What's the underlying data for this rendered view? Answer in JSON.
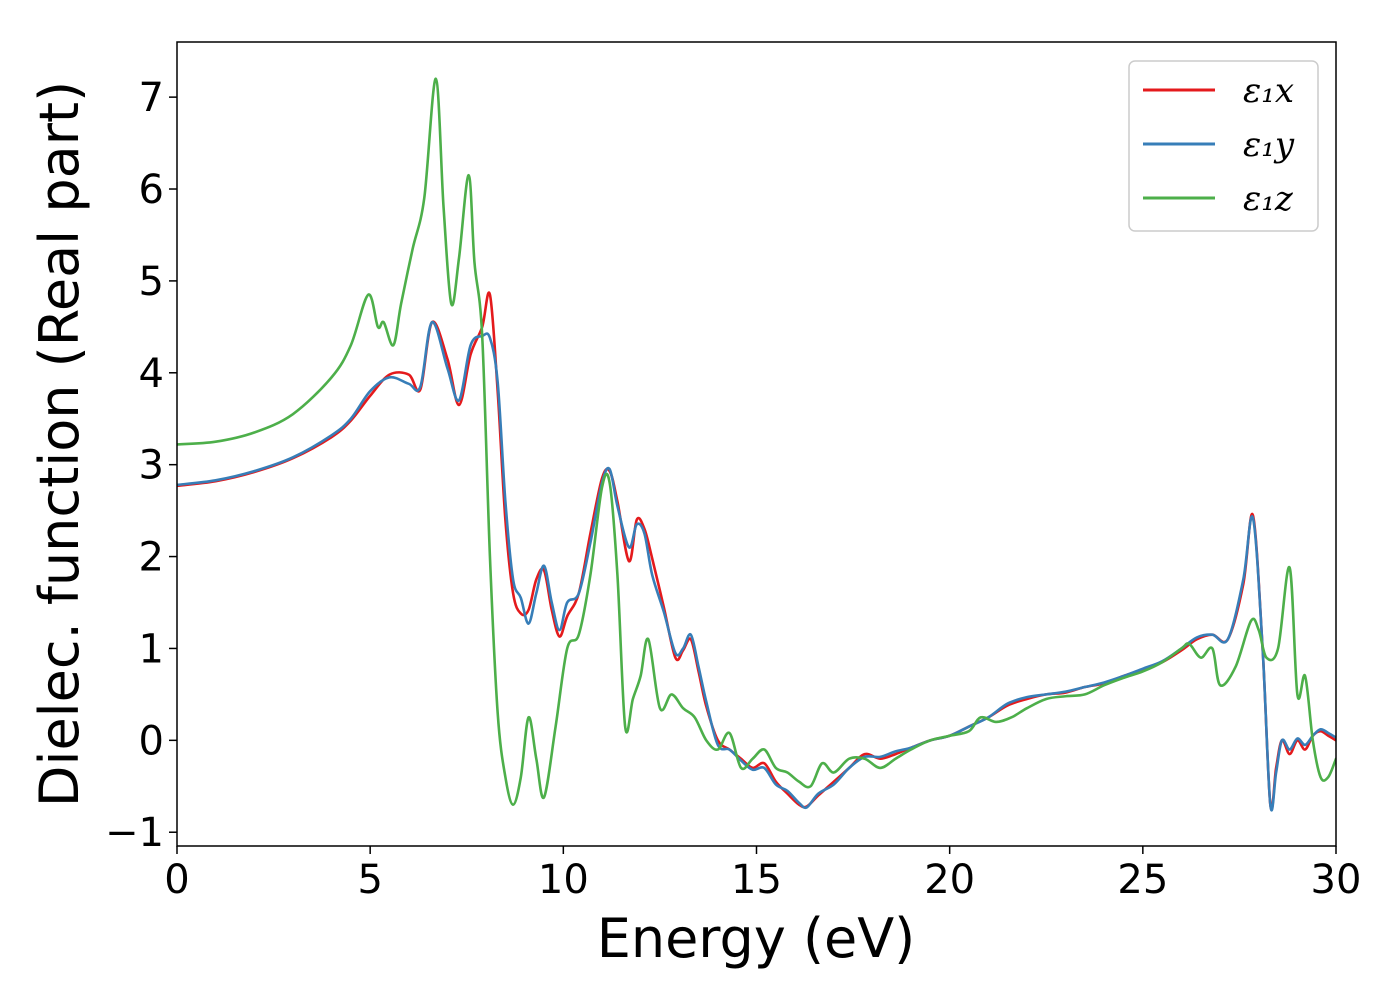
{
  "chart_data": {
    "type": "line",
    "xlabel": "Energy (eV)",
    "ylabel": "Dielec. function (Real part)",
    "xlim": [
      0,
      30
    ],
    "ylim": [
      -1.15,
      7.6
    ],
    "xticks": [
      0,
      5,
      10,
      15,
      20,
      25,
      30
    ],
    "xtick_labels": [
      "0",
      "5",
      "10",
      "15",
      "20",
      "25",
      "30"
    ],
    "yticks": [
      -1,
      0,
      1,
      2,
      3,
      4,
      5,
      6,
      7
    ],
    "ytick_labels": [
      "−1",
      "0",
      "1",
      "2",
      "3",
      "4",
      "5",
      "6",
      "7"
    ],
    "grid": false,
    "legend_position": "top-right",
    "series": [
      {
        "name": "ε₁x",
        "color": "#e41a1c",
        "x": [
          0,
          1,
          2,
          3,
          4,
          4.5,
          5,
          5.5,
          6,
          6.3,
          6.6,
          7,
          7.3,
          7.6,
          7.9,
          8.1,
          8.3,
          8.5,
          8.7,
          8.9,
          9.1,
          9.3,
          9.5,
          9.7,
          9.9,
          10.1,
          10.4,
          10.7,
          11,
          11.2,
          11.4,
          11.7,
          11.9,
          12.1,
          12.3,
          12.6,
          12.9,
          13.1,
          13.3,
          13.5,
          13.7,
          14,
          14.3,
          14.6,
          14.9,
          15.2,
          15.5,
          15.8,
          16.1,
          16.3,
          16.6,
          17,
          17.4,
          17.8,
          18.2,
          18.6,
          19,
          19.5,
          20,
          20.5,
          21,
          21.5,
          22,
          22.5,
          23,
          23.5,
          24,
          24.5,
          25,
          25.5,
          26,
          26.4,
          26.8,
          27.2,
          27.6,
          27.85,
          28.1,
          28.3,
          28.45,
          28.6,
          28.8,
          29,
          29.2,
          29.4,
          29.6,
          29.8,
          30
        ],
        "y": [
          2.77,
          2.82,
          2.92,
          3.07,
          3.3,
          3.48,
          3.75,
          3.98,
          3.98,
          3.82,
          4.55,
          4.15,
          3.65,
          4.2,
          4.5,
          4.85,
          3.8,
          2.4,
          1.6,
          1.38,
          1.42,
          1.75,
          1.85,
          1.42,
          1.13,
          1.35,
          1.6,
          2.25,
          2.85,
          2.93,
          2.6,
          1.95,
          2.4,
          2.3,
          1.98,
          1.45,
          0.9,
          0.98,
          1.1,
          0.75,
          0.37,
          0.0,
          -0.1,
          -0.2,
          -0.3,
          -0.25,
          -0.45,
          -0.58,
          -0.7,
          -0.72,
          -0.6,
          -0.45,
          -0.3,
          -0.15,
          -0.2,
          -0.15,
          -0.08,
          0.0,
          0.05,
          0.15,
          0.25,
          0.38,
          0.45,
          0.5,
          0.52,
          0.58,
          0.62,
          0.7,
          0.77,
          0.85,
          0.98,
          1.1,
          1.15,
          1.1,
          1.7,
          2.45,
          1.0,
          -0.7,
          -0.3,
          0.0,
          -0.15,
          0.0,
          -0.1,
          0.05,
          0.1,
          0.05,
          0.0
        ]
      },
      {
        "name": "ε₁y",
        "color": "#377eb8",
        "x": [
          0,
          1,
          2,
          3,
          4,
          4.5,
          5,
          5.5,
          6,
          6.3,
          6.6,
          7,
          7.3,
          7.6,
          7.9,
          8.1,
          8.3,
          8.5,
          8.7,
          8.9,
          9.1,
          9.3,
          9.5,
          9.7,
          9.9,
          10.1,
          10.4,
          10.7,
          11,
          11.2,
          11.4,
          11.7,
          11.9,
          12.1,
          12.3,
          12.6,
          12.9,
          13.1,
          13.3,
          13.5,
          13.7,
          14,
          14.3,
          14.6,
          14.9,
          15.2,
          15.5,
          15.8,
          16.1,
          16.3,
          16.6,
          17,
          17.4,
          17.8,
          18.2,
          18.6,
          19,
          19.5,
          20,
          20.5,
          21,
          21.5,
          22,
          22.5,
          23,
          23.5,
          24,
          24.5,
          25,
          25.5,
          26,
          26.4,
          26.8,
          27.2,
          27.6,
          27.85,
          28.1,
          28.3,
          28.45,
          28.6,
          28.8,
          29,
          29.2,
          29.4,
          29.6,
          29.8,
          30
        ],
        "y": [
          2.78,
          2.83,
          2.93,
          3.08,
          3.32,
          3.5,
          3.8,
          3.95,
          3.88,
          3.85,
          4.55,
          4.05,
          3.7,
          4.3,
          4.4,
          4.38,
          3.9,
          2.6,
          1.75,
          1.55,
          1.27,
          1.6,
          1.9,
          1.5,
          1.2,
          1.5,
          1.6,
          2.15,
          2.8,
          2.95,
          2.55,
          2.1,
          2.35,
          2.25,
          1.8,
          1.4,
          0.95,
          1.0,
          1.15,
          0.8,
          0.42,
          -0.05,
          -0.1,
          -0.22,
          -0.32,
          -0.3,
          -0.48,
          -0.55,
          -0.68,
          -0.73,
          -0.58,
          -0.48,
          -0.3,
          -0.18,
          -0.18,
          -0.12,
          -0.08,
          0.0,
          0.05,
          0.15,
          0.25,
          0.4,
          0.47,
          0.5,
          0.53,
          0.58,
          0.63,
          0.7,
          0.78,
          0.86,
          1.0,
          1.12,
          1.15,
          1.1,
          1.75,
          2.42,
          1.0,
          -0.7,
          -0.35,
          0.0,
          -0.1,
          0.02,
          -0.05,
          0.05,
          0.12,
          0.08,
          0.03
        ]
      },
      {
        "name": "ε₁z",
        "color": "#4daf4a",
        "x": [
          0,
          1,
          2,
          3,
          4,
          4.5,
          4.95,
          5.2,
          5.35,
          5.6,
          5.8,
          6.1,
          6.4,
          6.7,
          6.9,
          7.1,
          7.3,
          7.55,
          7.7,
          7.9,
          8.1,
          8.3,
          8.5,
          8.7,
          8.9,
          9.1,
          9.3,
          9.5,
          9.8,
          10.1,
          10.4,
          10.7,
          11,
          11.2,
          11.4,
          11.6,
          11.8,
          12,
          12.2,
          12.5,
          12.8,
          13.1,
          13.4,
          13.7,
          14,
          14.3,
          14.6,
          14.9,
          15.2,
          15.5,
          15.8,
          16.1,
          16.4,
          16.7,
          17,
          17.4,
          17.8,
          18.2,
          18.6,
          19,
          19.5,
          20,
          20.5,
          20.8,
          21.2,
          21.6,
          22,
          22.5,
          23,
          23.5,
          24,
          24.5,
          25,
          25.5,
          26,
          26.2,
          26.5,
          26.8,
          27,
          27.4,
          27.8,
          28,
          28.2,
          28.5,
          28.8,
          29,
          29.2,
          29.4,
          29.6,
          29.8,
          30
        ],
        "y": [
          3.22,
          3.25,
          3.35,
          3.55,
          3.95,
          4.3,
          4.85,
          4.5,
          4.55,
          4.3,
          4.75,
          5.35,
          5.9,
          7.2,
          5.8,
          4.75,
          5.25,
          6.15,
          5.2,
          4.4,
          2.0,
          0.3,
          -0.4,
          -0.7,
          -0.4,
          0.25,
          -0.2,
          -0.62,
          0.15,
          1.0,
          1.15,
          1.8,
          2.75,
          2.8,
          1.8,
          0.15,
          0.45,
          0.7,
          1.1,
          0.35,
          0.5,
          0.35,
          0.25,
          0.0,
          -0.1,
          0.08,
          -0.3,
          -0.2,
          -0.1,
          -0.3,
          -0.35,
          -0.45,
          -0.5,
          -0.25,
          -0.35,
          -0.2,
          -0.2,
          -0.3,
          -0.2,
          -0.1,
          0.0,
          0.05,
          0.1,
          0.25,
          0.2,
          0.25,
          0.35,
          0.45,
          0.48,
          0.5,
          0.6,
          0.68,
          0.75,
          0.85,
          1.0,
          1.05,
          0.9,
          1.0,
          0.6,
          0.8,
          1.3,
          1.2,
          0.9,
          1.0,
          1.88,
          0.5,
          0.7,
          0.0,
          -0.4,
          -0.4,
          -0.2
        ]
      }
    ]
  }
}
